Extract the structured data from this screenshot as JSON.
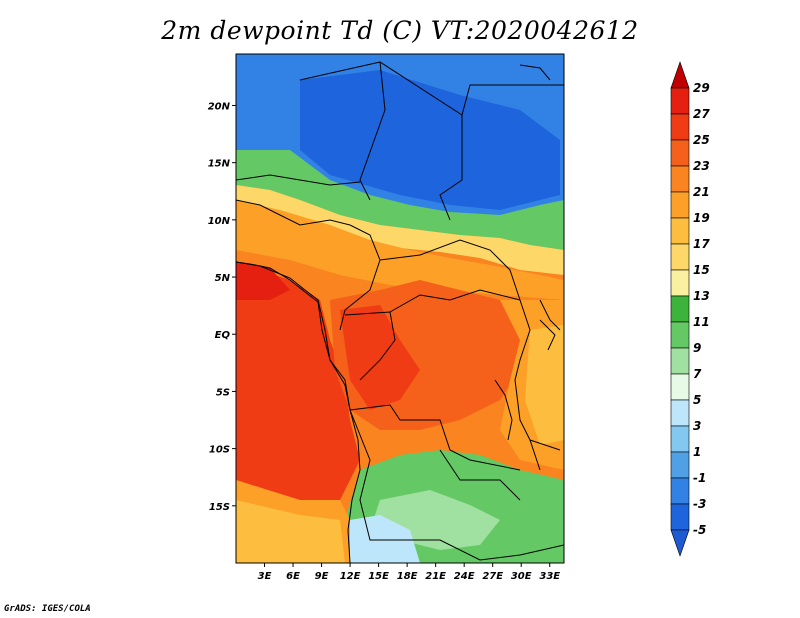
{
  "title": "2m dewpoint Td (C) VT:2020042612",
  "credit": "GrADS: IGES/COLA",
  "map": {
    "lon_range": [
      0,
      34.5
    ],
    "lat_range": [
      -20,
      24.5
    ],
    "lat_ticks": [
      {
        "value": 20,
        "label": "20N"
      },
      {
        "value": 15,
        "label": "15N"
      },
      {
        "value": 10,
        "label": "10N"
      },
      {
        "value": 5,
        "label": "5N"
      },
      {
        "value": 0,
        "label": "EQ"
      },
      {
        "value": -5,
        "label": "5S"
      },
      {
        "value": -10,
        "label": "10S"
      },
      {
        "value": -15,
        "label": "15S"
      }
    ],
    "lon_ticks": [
      {
        "value": 3,
        "label": "3E"
      },
      {
        "value": 6,
        "label": "6E"
      },
      {
        "value": 9,
        "label": "9E"
      },
      {
        "value": 12,
        "label": "12E"
      },
      {
        "value": 15,
        "label": "15E"
      },
      {
        "value": 18,
        "label": "18E"
      },
      {
        "value": 21,
        "label": "21E"
      },
      {
        "value": 24,
        "label": "24E"
      },
      {
        "value": 27,
        "label": "27E"
      },
      {
        "value": 30,
        "label": "30E"
      },
      {
        "value": 33,
        "label": "33E"
      }
    ]
  },
  "colorbar": {
    "labels": [
      "29",
      "27",
      "25",
      "23",
      "21",
      "19",
      "17",
      "15",
      "13",
      "11",
      "9",
      "7",
      "5",
      "3",
      "1",
      "-1",
      "-3",
      "-5"
    ],
    "colors": [
      "#c00000",
      "#e62010",
      "#f03c14",
      "#f5601a",
      "#fa8420",
      "#fca028",
      "#fdbe40",
      "#fdd868",
      "#fbf0a0",
      "#3cb43c",
      "#64c864",
      "#a0e0a0",
      "#e6fae6",
      "#bee6fa",
      "#82c8f0",
      "#50a0e6",
      "#3282e6",
      "#1e64dc",
      "#1e5ad2"
    ]
  }
}
